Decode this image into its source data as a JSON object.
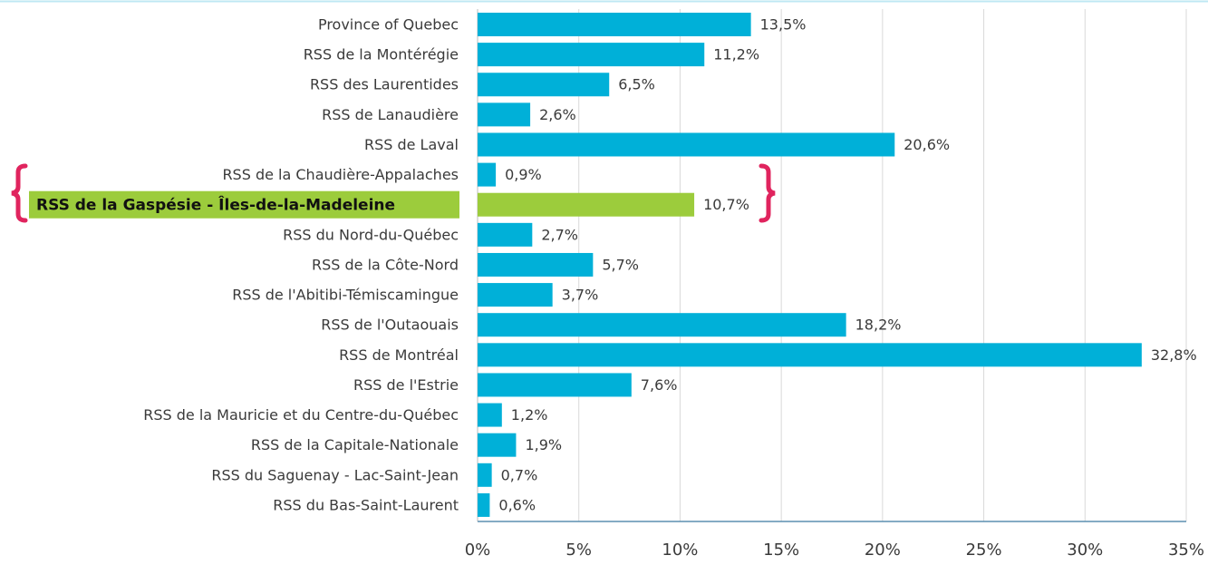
{
  "chart_data": {
    "type": "bar",
    "orientation": "horizontal",
    "categories": [
      "Province of Quebec",
      "RSS de la Montérégie",
      "RSS des Laurentides",
      "RSS de Lanaudière",
      "RSS de Laval",
      "RSS de la Chaudière-Appalaches",
      "RSS de la Gaspésie - Îles-de-la-Madeleine",
      "RSS du Nord-du-Québec",
      "RSS de la Côte-Nord",
      "RSS de l'Abitibi-Témiscamingue",
      "RSS de l'Outaouais",
      "RSS de Montréal",
      "RSS de l'Estrie",
      "RSS de la Mauricie et du Centre-du-Québec",
      "RSS de la Capitale-Nationale",
      "RSS du Saguenay - Lac-Saint-Jean",
      "RSS du Bas-Saint-Laurent"
    ],
    "values": [
      13.5,
      11.2,
      6.5,
      2.6,
      20.6,
      0.9,
      10.7,
      2.7,
      5.7,
      3.7,
      18.2,
      32.8,
      7.6,
      1.2,
      1.9,
      0.7,
      0.6
    ],
    "value_labels": [
      "13,5%",
      "11,2%",
      "6,5%",
      "2,6%",
      "20,6%",
      "0,9%",
      "10,7%",
      "2,7%",
      "5,7%",
      "3,7%",
      "18,2%",
      "32,8%",
      "7,6%",
      "1,2%",
      "1,9%",
      "0,7%",
      "0,6%"
    ],
    "color": "#00b0d8",
    "colors": [
      "#00b0d8",
      "#00b0d8",
      "#00b0d8",
      "#00b0d8",
      "#00b0d8",
      "#00b0d8",
      "#9ccc3c",
      "#00b0d8",
      "#00b0d8",
      "#00b0d8",
      "#00b0d8",
      "#00b0d8",
      "#00b0d8",
      "#00b0d8",
      "#00b0d8",
      "#00b0d8",
      "#00b0d8"
    ],
    "xlim": [
      0,
      35
    ],
    "xticks": [
      {
        "value": 0,
        "label": "0%"
      },
      {
        "value": 5,
        "label": "5%"
      },
      {
        "value": 10,
        "label": "10%"
      },
      {
        "value": 15,
        "label": "15%"
      },
      {
        "value": 20,
        "label": "20%"
      },
      {
        "value": 25,
        "label": "25%"
      },
      {
        "value": 30,
        "label": "30%"
      },
      {
        "value": 35,
        "label": "35%"
      }
    ],
    "grid": true
  }
}
